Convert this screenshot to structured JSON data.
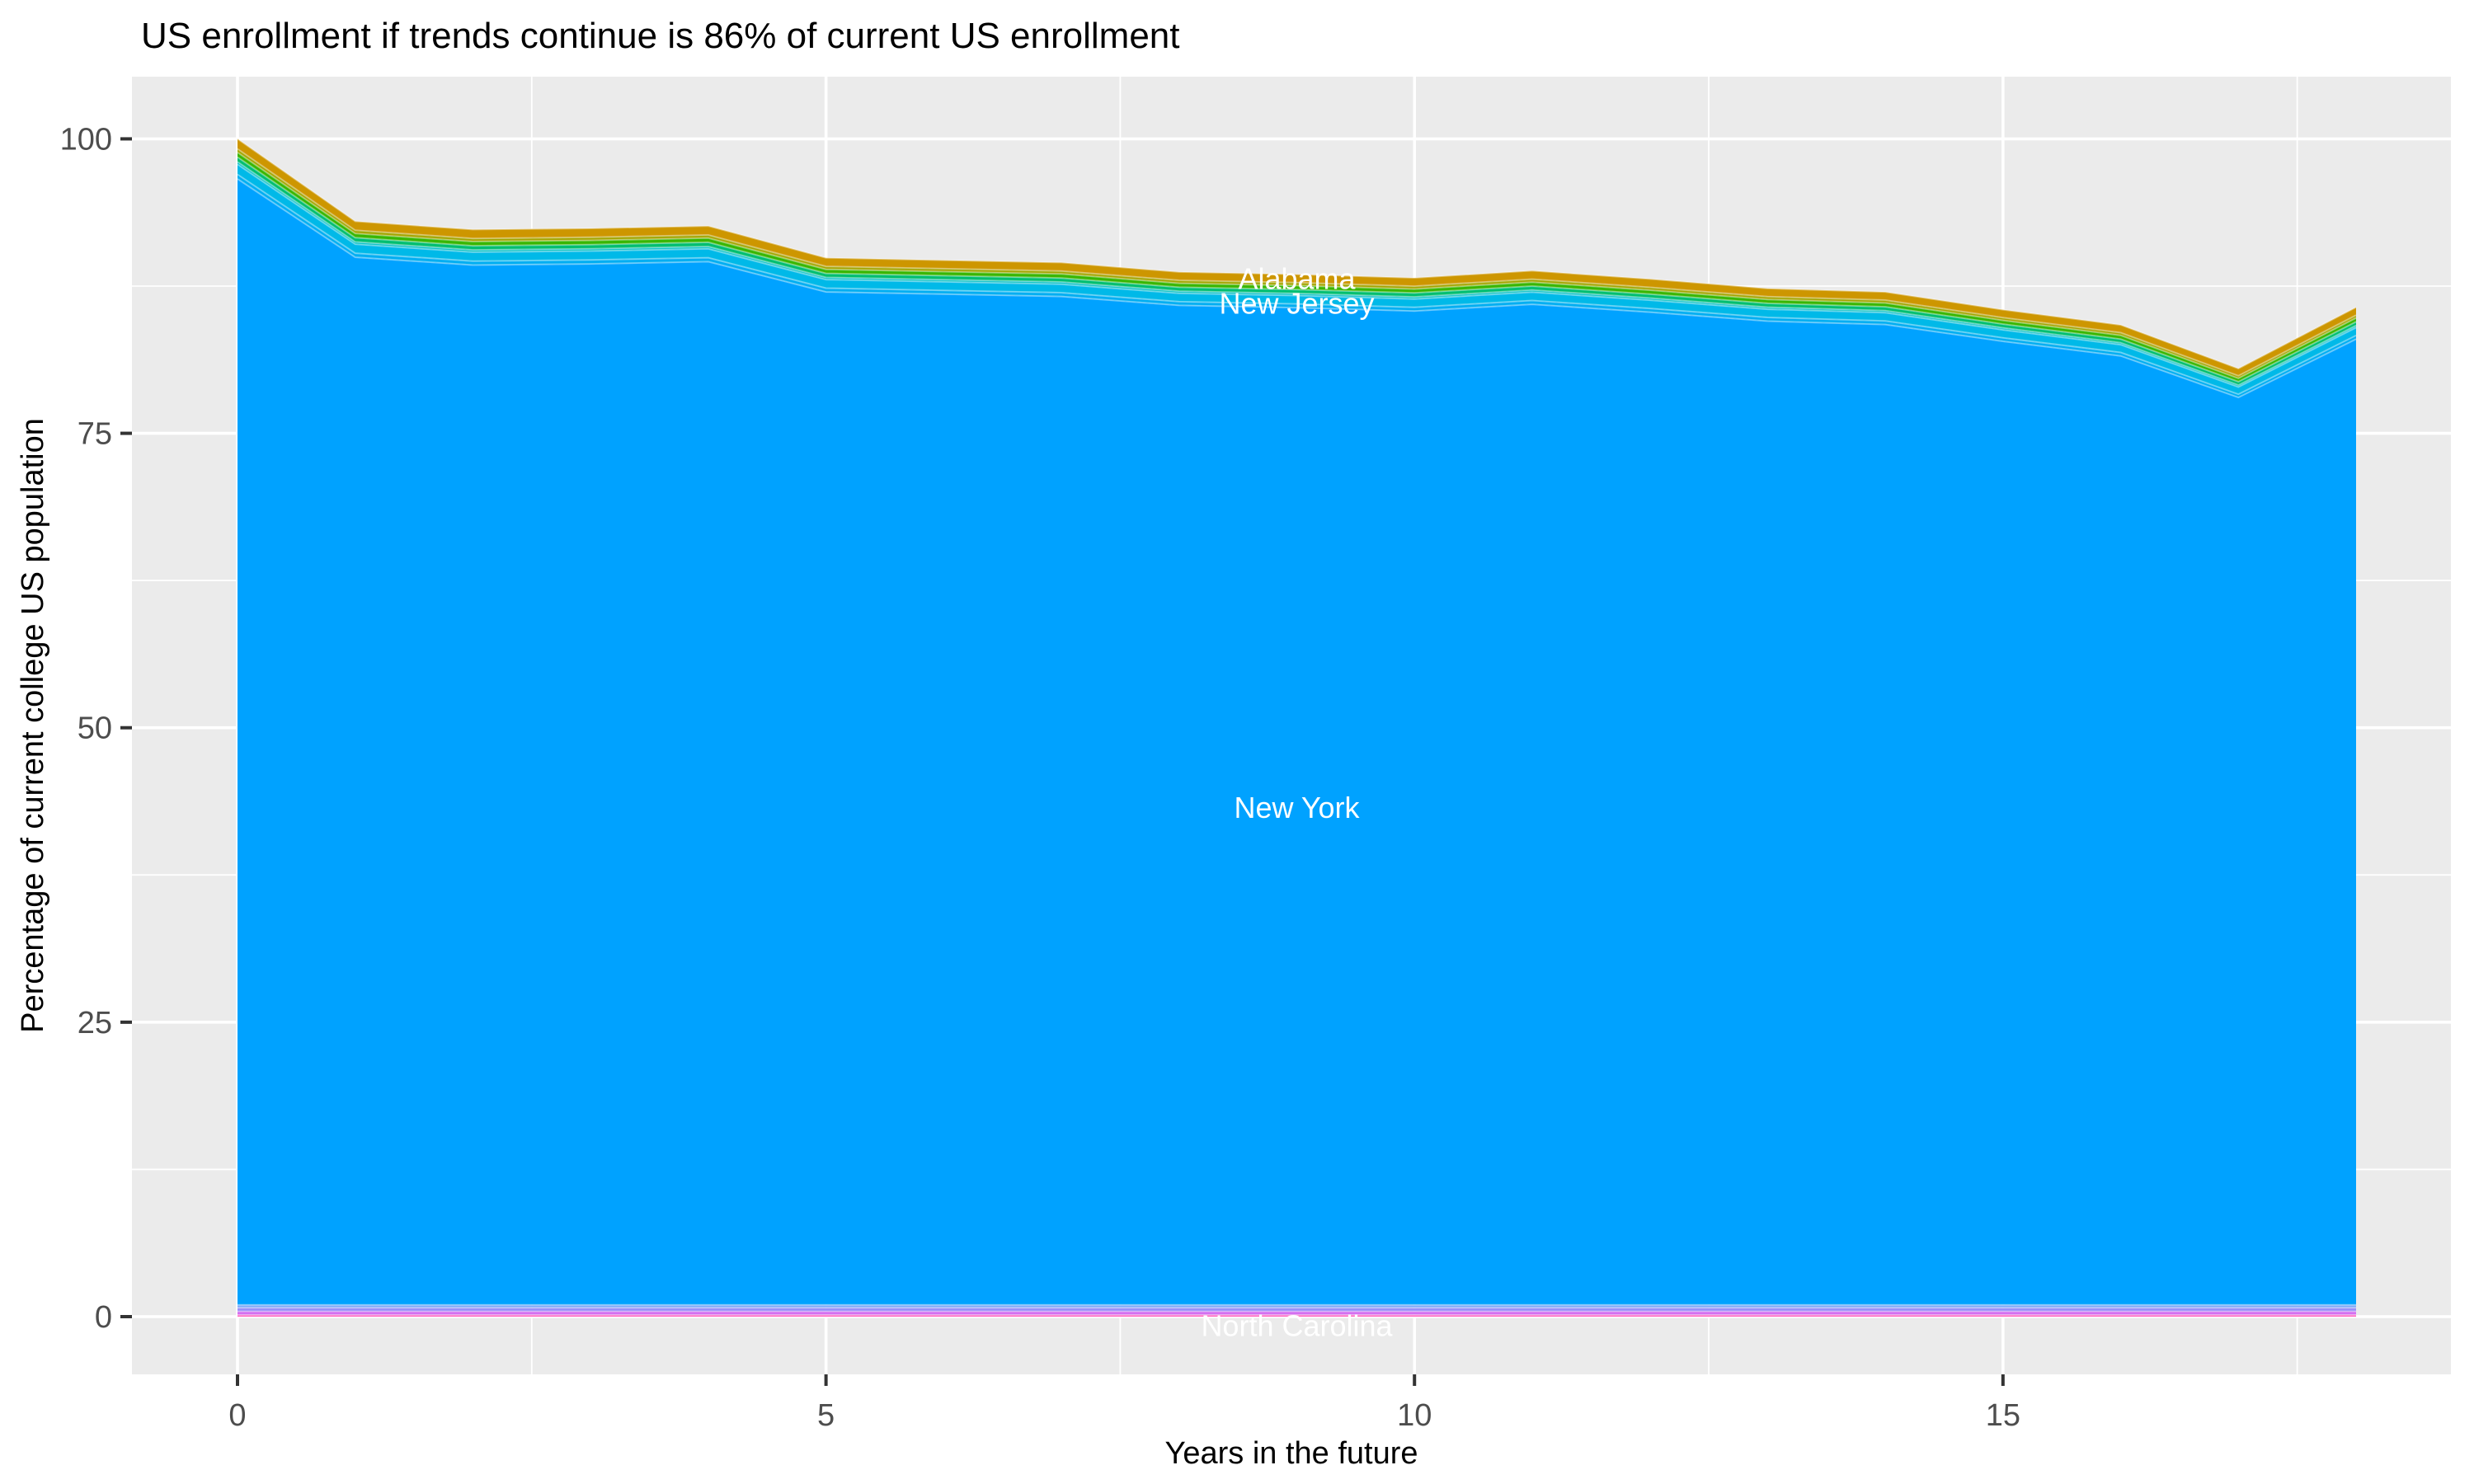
{
  "title": "US enrollment if trends continue is 86% of current US enrollment",
  "axes": {
    "x": {
      "label": "Years in the future",
      "range": [
        0,
        18
      ],
      "major_ticks": [
        0,
        5,
        10,
        15
      ],
      "minor_ticks": [
        2.5,
        7.5,
        12.5,
        17.5
      ]
    },
    "y": {
      "label": "Percentage of current college US population",
      "range": [
        0,
        100
      ],
      "major_ticks": [
        0,
        25,
        50,
        75,
        100
      ],
      "minor_ticks": [
        12.5,
        37.5,
        62.5,
        87.5
      ]
    }
  },
  "panel": {
    "background": "#EBEBEB",
    "gridline_color": "#FFFFFF",
    "tick_color": "#333333",
    "separator_color": "rgba(255,255,255,0.38)"
  },
  "chart_data": {
    "type": "area",
    "stacking": "stacked percentage of current US college population by state, largest band is New York",
    "x": [
      0,
      1,
      2,
      3,
      4,
      5,
      6,
      7,
      8,
      9,
      10,
      11,
      12,
      13,
      14,
      15,
      16,
      17,
      18
    ],
    "total_top_edge": [
      100,
      93.0,
      92.3,
      92.4,
      92.6,
      89.9,
      89.7,
      89.5,
      88.7,
      88.5,
      88.2,
      88.8,
      88.1,
      87.3,
      87.0,
      85.5,
      84.2,
      80.5,
      85.7
    ],
    "top_bands": [
      {
        "name": "Alabama",
        "color": "#CD9600",
        "thickness": 0.85
      },
      {
        "name": "unlabeled-olive",
        "color": "#A3A500",
        "thickness": 0.3
      },
      {
        "name": "unlabeled-green",
        "color": "#39B600",
        "thickness": 0.4
      },
      {
        "name": "unlabeled-emerald",
        "color": "#00BE70",
        "thickness": 0.4
      },
      {
        "name": "unlabeled-teal",
        "color": "#00BFC4",
        "thickness": 0.22
      },
      {
        "name": "New Jersey",
        "color": "#00B9E8",
        "thickness": 0.85
      },
      {
        "name": "unlabeled-azure",
        "color": "#00AEF2",
        "thickness": 0.38
      }
    ],
    "main_band": {
      "name": "New York",
      "color": "#00A2FF",
      "bottom_value": 1.0
    },
    "bottom_bands": [
      {
        "name": "unlabeled-pale-blue",
        "color": "#7CA9F8",
        "thickness": 0.25
      },
      {
        "name": "unlabeled-periwinkle",
        "color": "#968DF8",
        "thickness": 0.3
      },
      {
        "name": "North Carolina",
        "color": "#D36BF0",
        "thickness": 0.3
      },
      {
        "name": "unlabeled-pink",
        "color": "#FF62BE",
        "thickness": 0.15
      }
    ],
    "annotations": [
      {
        "text": "Alabama",
        "x": 9,
        "y": 88.1
      },
      {
        "text": "New Jersey",
        "x": 9,
        "y": 86.0
      },
      {
        "text": "New York",
        "x": 9,
        "y": 43.2
      },
      {
        "text": "North Carolina",
        "x": 9,
        "y": -0.8
      }
    ]
  }
}
